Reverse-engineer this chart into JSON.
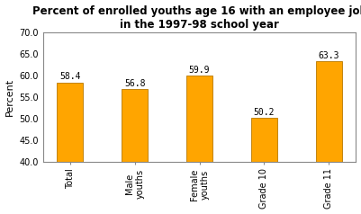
{
  "title": "Percent of enrolled youths age 16 with an employee job\nin the 1997-98 school year",
  "categories": [
    "Total",
    "Male\nyouths",
    "Female\nyouths",
    "Grade 10",
    "Grade 11"
  ],
  "values": [
    58.4,
    56.8,
    59.9,
    50.2,
    63.3
  ],
  "bar_color": "#FFA500",
  "bar_edgecolor": "#B87800",
  "ylabel": "Percent",
  "ylim": [
    40.0,
    70.0
  ],
  "yticks": [
    40.0,
    45.0,
    50.0,
    55.0,
    60.0,
    65.0,
    70.0
  ],
  "title_fontsize": 8.5,
  "ylabel_fontsize": 8,
  "tick_fontsize": 7,
  "value_fontsize": 7,
  "bar_width": 0.4,
  "background_color": "#ffffff",
  "border_color": "#888888"
}
